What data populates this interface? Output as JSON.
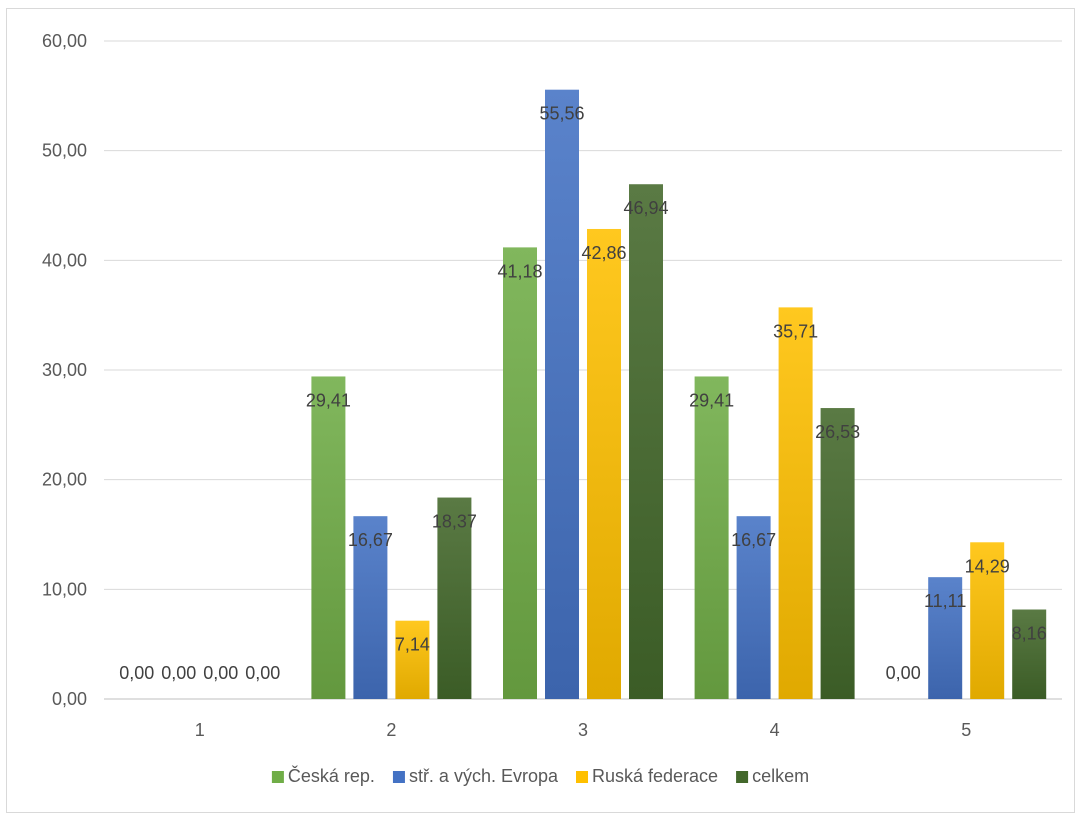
{
  "chart_data": {
    "type": "bar",
    "categories": [
      "1",
      "2",
      "3",
      "4",
      "5"
    ],
    "series": [
      {
        "name": "Česká rep.",
        "color": "#70ad47",
        "values": [
          0.0,
          29.41,
          41.18,
          29.41,
          0.0
        ],
        "labels": [
          "0,00",
          "29,41",
          "41,18",
          "29,41",
          "0,00"
        ]
      },
      {
        "name": "stř. a vých. Evropa",
        "color": "#4472c4",
        "values": [
          0.0,
          16.67,
          55.56,
          16.67,
          11.11
        ],
        "labels": [
          "0,00",
          "16,67",
          "55,56",
          "16,67",
          "11,11"
        ]
      },
      {
        "name": "Ruská federace",
        "color": "#ffc000",
        "values": [
          0.0,
          7.14,
          42.86,
          35.71,
          14.29
        ],
        "labels": [
          "0,00",
          "7,14",
          "42,86",
          "35,71",
          "14,29"
        ]
      },
      {
        "name": "celkem",
        "color": "#43682b",
        "values": [
          0.0,
          18.37,
          46.94,
          26.53,
          8.16
        ],
        "labels": [
          "0,00",
          "18,37",
          "46,94",
          "26,53",
          "8,16"
        ]
      }
    ],
    "y_ticks": [
      "0,00",
      "10,00",
      "20,00",
      "30,00",
      "40,00",
      "50,00",
      "60,00"
    ],
    "ylim": [
      0,
      60
    ],
    "grid": true,
    "legend": "bottom",
    "title": "",
    "xlabel": "",
    "ylabel": ""
  }
}
